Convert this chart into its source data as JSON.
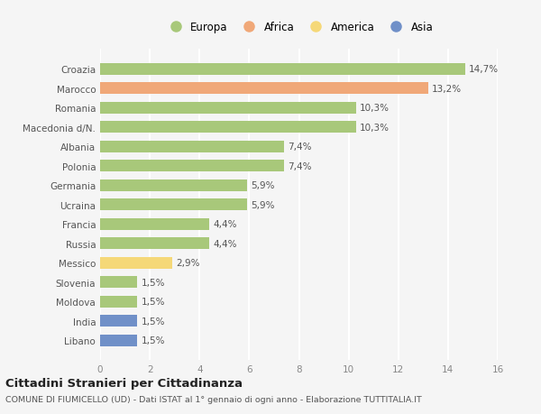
{
  "categories": [
    "Croazia",
    "Marocco",
    "Romania",
    "Macedonia d/N.",
    "Albania",
    "Polonia",
    "Germania",
    "Ucraina",
    "Francia",
    "Russia",
    "Messico",
    "Slovenia",
    "Moldova",
    "India",
    "Libano"
  ],
  "values": [
    14.7,
    13.2,
    10.3,
    10.3,
    7.4,
    7.4,
    5.9,
    5.9,
    4.4,
    4.4,
    2.9,
    1.5,
    1.5,
    1.5,
    1.5
  ],
  "labels": [
    "14,7%",
    "13,2%",
    "10,3%",
    "10,3%",
    "7,4%",
    "7,4%",
    "5,9%",
    "5,9%",
    "4,4%",
    "4,4%",
    "2,9%",
    "1,5%",
    "1,5%",
    "1,5%",
    "1,5%"
  ],
  "colors": [
    "#a8c87a",
    "#f0a878",
    "#a8c87a",
    "#a8c87a",
    "#a8c87a",
    "#a8c87a",
    "#a8c87a",
    "#a8c87a",
    "#a8c87a",
    "#a8c87a",
    "#f5d878",
    "#a8c87a",
    "#a8c87a",
    "#7090c8",
    "#7090c8"
  ],
  "legend_labels": [
    "Europa",
    "Africa",
    "America",
    "Asia"
  ],
  "legend_colors": [
    "#a8c87a",
    "#f0a878",
    "#f5d878",
    "#7090c8"
  ],
  "xlim": [
    0,
    16
  ],
  "xticks": [
    0,
    2,
    4,
    6,
    8,
    10,
    12,
    14,
    16
  ],
  "title": "Cittadini Stranieri per Cittadinanza",
  "subtitle": "COMUNE DI FIUMICELLO (UD) - Dati ISTAT al 1° gennaio di ogni anno - Elaborazione TUTTITALIA.IT",
  "bg_color": "#f5f5f5",
  "grid_color": "#ffffff",
  "bar_height": 0.6
}
